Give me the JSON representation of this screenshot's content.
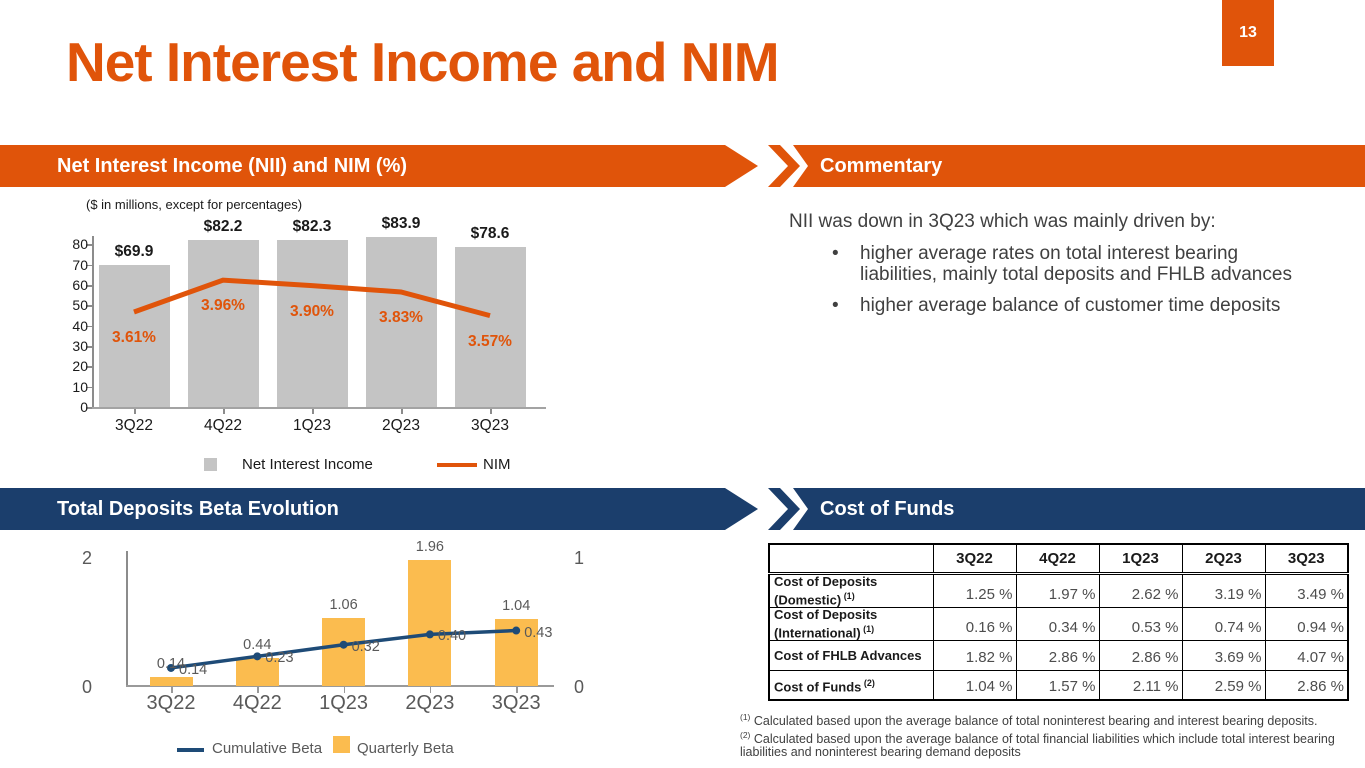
{
  "title": "Net Interest Income and NIM",
  "page_number": "13",
  "colors": {
    "orange": "#E0540A",
    "navy": "#1B3E6C",
    "bar_gray": "#C4C4C4",
    "amber": "#FBBC4F",
    "line_navy": "#1E4B77",
    "text_dark": "#1A1A1A",
    "text_gray": "#595959",
    "body_text": "#404040"
  },
  "commentary": {
    "banner": "Commentary",
    "intro": "NII was down in 3Q23 which was mainly driven by:",
    "bullets": [
      "higher average rates on total interest bearing liabilities, mainly total deposits and FHLB advances",
      "higher average balance of customer time deposits"
    ]
  },
  "footnotes": [
    {
      "sup": "(1)",
      "text": " Calculated based upon the average balance of total noninterest bearing and interest bearing deposits."
    },
    {
      "sup": "(2)",
      "text": " Calculated based upon the average balance of total financial liabilities which include total interest bearing liabilities and noninterest bearing demand deposits"
    }
  ],
  "chart_data": [
    {
      "type": "bar+line",
      "title": "Net Interest Income (NII) and NIM (%)",
      "subtitle": "($ in millions, except for percentages)",
      "categories": [
        "3Q22",
        "4Q22",
        "1Q23",
        "2Q23",
        "3Q23"
      ],
      "series": [
        {
          "name": "Net Interest Income",
          "type": "bar",
          "values": [
            69.9,
            82.2,
            82.3,
            83.9,
            78.6
          ],
          "labels": [
            "$69.9",
            "$82.2",
            "$82.3",
            "$83.9",
            "$78.6"
          ],
          "color": "#C4C4C4"
        },
        {
          "name": "NIM",
          "type": "line",
          "values": [
            3.61,
            3.96,
            3.9,
            3.83,
            3.57
          ],
          "labels": [
            "3.61%",
            "3.96%",
            "3.90%",
            "3.83%",
            "3.57%"
          ],
          "color": "#E0540A"
        }
      ],
      "yticks": [
        80,
        70,
        60,
        50,
        40,
        30,
        20,
        10,
        0
      ],
      "ylim": [
        0,
        88
      ],
      "grid": false,
      "legend_position": "bottom"
    },
    {
      "type": "bar+line",
      "title": "Total Deposits Beta Evolution",
      "categories": [
        "3Q22",
        "4Q22",
        "1Q23",
        "2Q23",
        "3Q23"
      ],
      "series": [
        {
          "name": "Quarterly Beta",
          "type": "bar",
          "axis": "left",
          "values": [
            0.14,
            0.44,
            1.06,
            1.96,
            1.04
          ],
          "labels": [
            "0.14",
            "0.44",
            "1.06",
            "1.96",
            "1.04"
          ],
          "color": "#FBBC4F"
        },
        {
          "name": "Cumulative Beta",
          "type": "line",
          "axis": "right",
          "values": [
            0.14,
            0.23,
            0.32,
            0.4,
            0.43
          ],
          "labels": [
            "0.14",
            "0.23",
            "0.32",
            "0.40",
            "0.43"
          ],
          "color": "#1E4B77"
        }
      ],
      "left_axis": {
        "range": [
          0,
          2
        ],
        "ticks": [
          2,
          0
        ]
      },
      "right_axis": {
        "range": [
          0,
          1
        ],
        "ticks": [
          1,
          0
        ]
      },
      "grid": false,
      "legend_position": "bottom"
    },
    {
      "type": "table",
      "title": "Cost of Funds",
      "columns": [
        "",
        "3Q22",
        "4Q22",
        "1Q23",
        "2Q23",
        "3Q23"
      ],
      "rows": [
        {
          "label_lines": [
            "Cost of Deposits",
            "(Domestic)"
          ],
          "sup": "(1)",
          "values": [
            "1.25 %",
            "1.97 %",
            "2.62 %",
            "3.19 %",
            "3.49 %"
          ]
        },
        {
          "label_lines": [
            "Cost of Deposits",
            "(International)"
          ],
          "sup": "(1)",
          "values": [
            "0.16 %",
            "0.34 %",
            "0.53 %",
            "0.74 %",
            "0.94 %"
          ]
        },
        {
          "label_lines": [
            "Cost of FHLB Advances"
          ],
          "sup": "",
          "values": [
            "1.82 %",
            "2.86 %",
            "2.86 %",
            "3.69 %",
            "4.07 %"
          ]
        },
        {
          "label_lines": [
            "Cost of Funds"
          ],
          "sup": "(2)",
          "values": [
            "1.04 %",
            "1.57 %",
            "2.11 %",
            "2.59 %",
            "2.86 %"
          ]
        }
      ]
    }
  ]
}
